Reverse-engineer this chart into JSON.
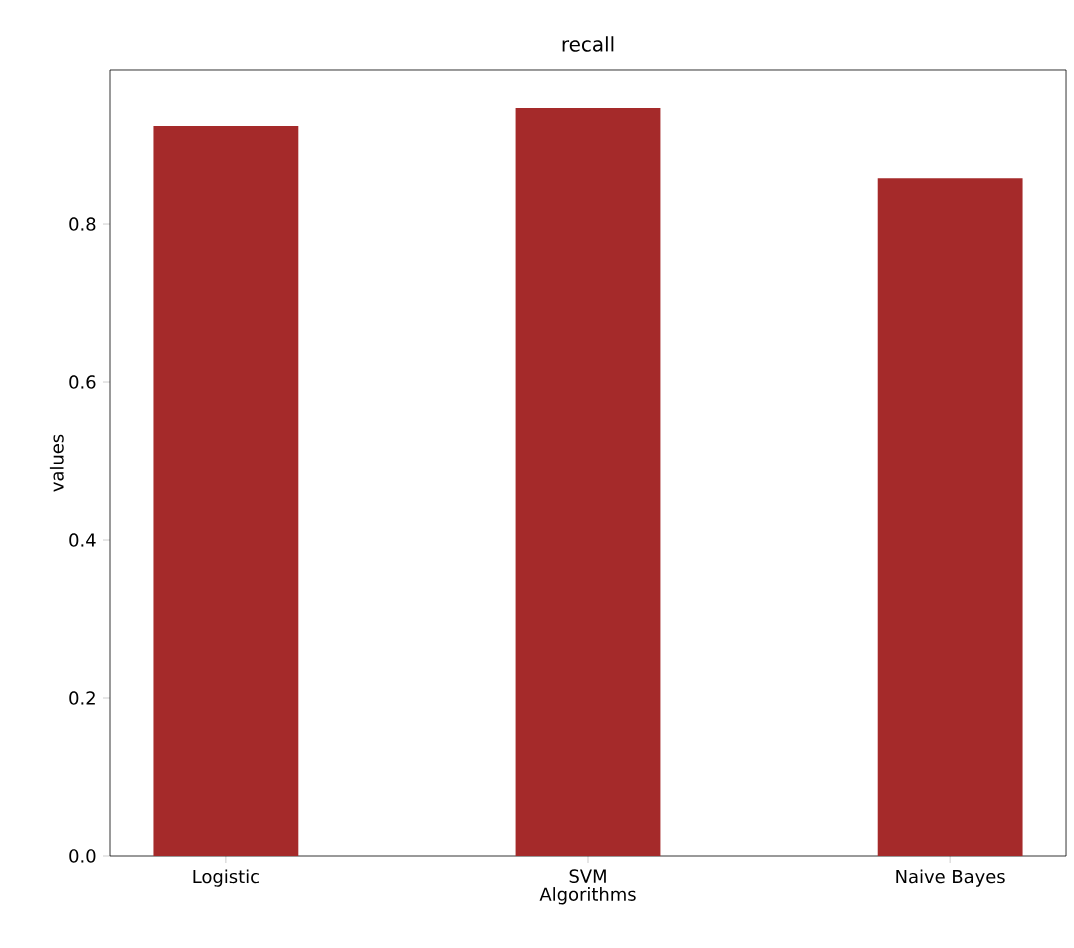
{
  "chart_data": {
    "type": "bar",
    "title": "recall",
    "xlabel": "Algorithms",
    "ylabel": "values",
    "categories": [
      "Logistic",
      "SVM",
      "Naive Bayes"
    ],
    "values": [
      0.924,
      0.947,
      0.858
    ],
    "color": "#a52a2a",
    "ylim": [
      0,
      0.995
    ],
    "yticks": [
      {
        "value": 0,
        "label": "0.0"
      },
      {
        "value": 0.2,
        "label": "0.2"
      },
      {
        "value": 0.4,
        "label": "0.4"
      },
      {
        "value": 0.6,
        "label": "0.6"
      },
      {
        "value": 0.8,
        "label": "0.8"
      }
    ]
  }
}
